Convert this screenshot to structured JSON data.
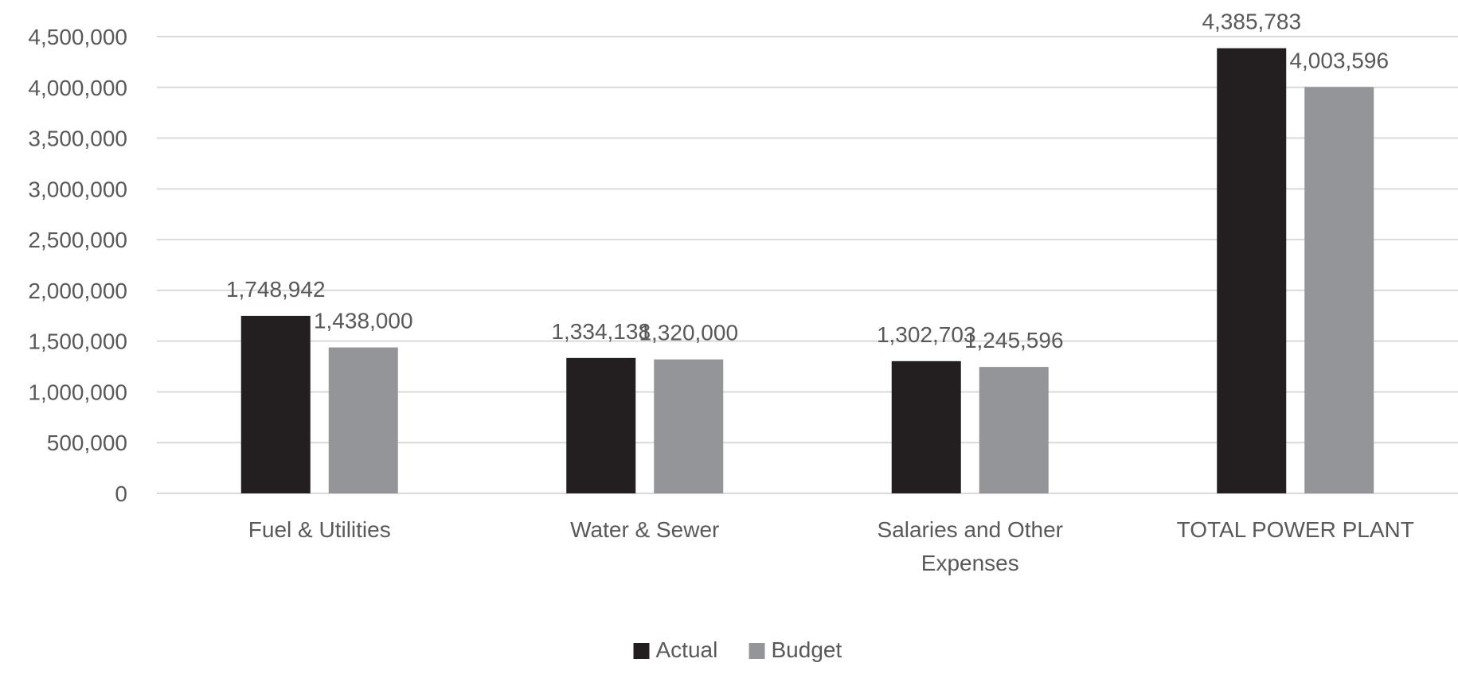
{
  "chart_data": {
    "type": "bar",
    "title": "",
    "xlabel": "",
    "ylabel": "",
    "categories": [
      [
        "Fuel & Utilities"
      ],
      [
        "Water & Sewer"
      ],
      [
        "Salaries and Other",
        "Expenses"
      ],
      [
        "TOTAL POWER PLANT"
      ]
    ],
    "series": [
      {
        "name": "Actual",
        "color": "#231f20",
        "values": [
          1748942,
          1334138,
          1302703,
          4385783
        ],
        "labels": [
          "1,748,942",
          "1,334,138",
          "1,302,703",
          "4,385,783"
        ]
      },
      {
        "name": "Budget",
        "color": "#939598",
        "values": [
          1438000,
          1320000,
          1245596,
          4003596
        ],
        "labels": [
          "1,438,000",
          "1,320,000",
          "1,245,596",
          "4,003,596"
        ]
      }
    ],
    "ylim": [
      0,
      4500000
    ],
    "yticks": [
      0,
      500000,
      1000000,
      1500000,
      2000000,
      2500000,
      3000000,
      3500000,
      4000000,
      4500000
    ],
    "ytick_labels": [
      "0",
      "500,000",
      "1,000,000",
      "1,500,000",
      "2,000,000",
      "2,500,000",
      "3,000,000",
      "3,500,000",
      "4,000,000",
      "4,500,000"
    ],
    "grid": true,
    "legend_position": "bottom-center"
  }
}
